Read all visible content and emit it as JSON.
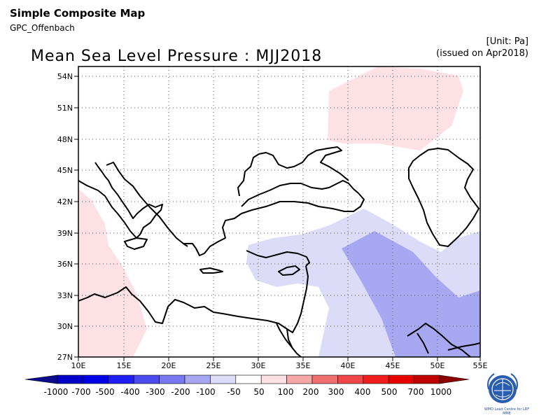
{
  "header": {
    "app_title": "Simple Composite Map",
    "subtitle": "GPC_Offenbach",
    "unit": "[Unit: Pa]",
    "issued": "(issued on Apr2018)"
  },
  "map": {
    "title": "Mean Sea Level Pressure : MJJ2018",
    "lat_labels": [
      "54N",
      "51N",
      "48N",
      "45N",
      "42N",
      "39N",
      "36N",
      "33N",
      "30N",
      "27N"
    ],
    "lon_labels": [
      "10E",
      "15E",
      "20E",
      "25E",
      "30E",
      "35E",
      "40E",
      "45E",
      "50E",
      "55E"
    ],
    "region": "Mediterranean / Middle East",
    "anomaly_colors": {
      "positive_light": "#fde1e4",
      "negative_light": "#dcdcf8",
      "negative_medium": "#a7a7f2"
    }
  },
  "colorbar": {
    "labels": [
      "-1000",
      "-700",
      "-500",
      "-400",
      "-300",
      "-200",
      "-100",
      "-50",
      "50",
      "100",
      "200",
      "300",
      "400",
      "500",
      "700",
      "1000"
    ],
    "colors": [
      "#0b0b8c",
      "#0000c8",
      "#0000e6",
      "#1e1ef5",
      "#4b4bf0",
      "#7878f0",
      "#a7a7f2",
      "#dcdcf8",
      "#ffffff",
      "#fde1e4",
      "#f6a8a8",
      "#f07070",
      "#f04848",
      "#f01e1e",
      "#e60000",
      "#c00000",
      "#8c0000"
    ]
  },
  "logo": {
    "caption": "WMO Lead Centre for LRF MME"
  }
}
